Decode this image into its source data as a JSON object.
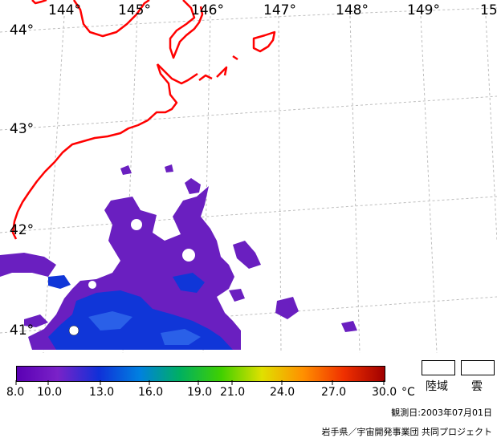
{
  "map": {
    "longitude_labels": [
      "144°",
      "145°",
      "146°",
      "147°",
      "148°",
      "149°",
      "15"
    ],
    "latitude_labels": [
      "44°",
      "43°",
      "42°",
      "41°"
    ],
    "coastline_color": "#ff0000",
    "grid_color": "#bdbdbd"
  },
  "colorbar": {
    "tick_labels": [
      "8.0",
      "10.0",
      "13.0",
      "16.0",
      "19.0",
      "21.0",
      "24.0",
      "27.0",
      "30.0"
    ],
    "unit": "°C",
    "colors": [
      "#5a00b4",
      "#7a22c8",
      "#1030d8",
      "#0080e0",
      "#00b060",
      "#40d000",
      "#e0e000",
      "#ff9000",
      "#f03000",
      "#a00000"
    ]
  },
  "legend": {
    "land_label": "陸域",
    "cloud_label": "雲"
  },
  "footer": {
    "observation_date": "観測日:2003年07月01日",
    "credit": "岩手県／宇宙開発事業団 共同プロジェクト"
  }
}
